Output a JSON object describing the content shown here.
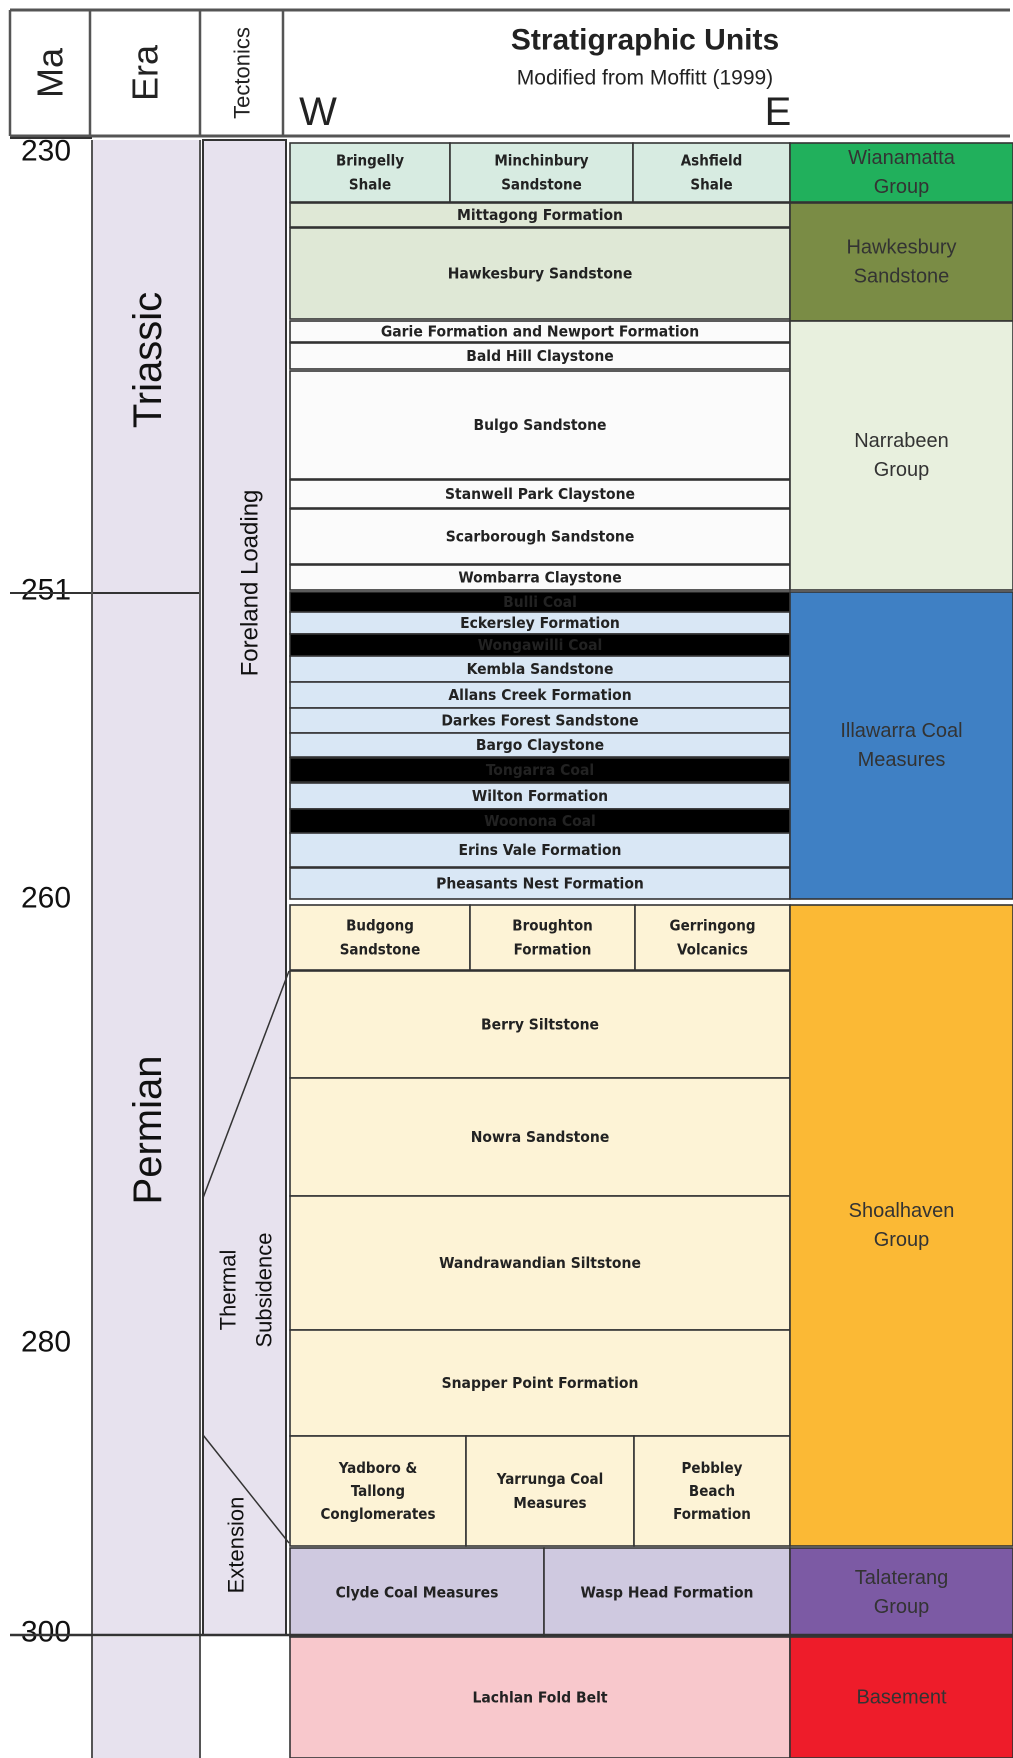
{
  "header": {
    "ma": "Ma",
    "era": "Era",
    "tectonics": "Tectonics",
    "title": "Stratigraphic Units",
    "subtitle": "Modified from Moffitt (1999)",
    "west": "W",
    "east": "E"
  },
  "ages": [
    "230",
    "251",
    "260",
    "280",
    "300"
  ],
  "eras": [
    "Triassic",
    "Permian"
  ],
  "tectonics": [
    "Foreland Loading",
    "Thermal",
    "Subsidence",
    "Extension"
  ],
  "units": [
    {
      "lines": [
        "Bringelly",
        "Shale"
      ],
      "fill": "#d7ebe1"
    },
    {
      "lines": [
        "Minchinbury",
        "Sandstone"
      ],
      "fill": "#d7ebe1"
    },
    {
      "lines": [
        "Ashfield",
        "Shale"
      ],
      "fill": "#d7ebe1"
    },
    {
      "lines": [
        "Mittagong Formation"
      ],
      "fill": "#dfe8d6"
    },
    {
      "lines": [
        "Hawkesbury Sandstone"
      ],
      "fill": "#dfe8d6"
    },
    {
      "lines": [
        "Garie Formation   and      Newport Formation"
      ],
      "fill": "#fbfbfb"
    },
    {
      "lines": [
        "Bald Hill Claystone"
      ],
      "fill": "#fbfbfb"
    },
    {
      "lines": [
        "Bulgo Sandstone"
      ],
      "fill": "#fbfbfb"
    },
    {
      "lines": [
        "Stanwell Park Claystone"
      ],
      "fill": "#fbfbfb"
    },
    {
      "lines": [
        "Scarborough Sandstone"
      ],
      "fill": "#fbfbfb"
    },
    {
      "lines": [
        "Wombarra Claystone"
      ],
      "fill": "#fbfbfb"
    },
    {
      "lines": [
        "Bulli Coal"
      ],
      "fill": "#000000"
    },
    {
      "lines": [
        "Eckersley Formation"
      ],
      "fill": "#d9e7f5"
    },
    {
      "lines": [
        "Wongawilli Coal"
      ],
      "fill": "#000000"
    },
    {
      "lines": [
        "Kembla Sandstone"
      ],
      "fill": "#d9e7f5"
    },
    {
      "lines": [
        "Allans Creek Formation"
      ],
      "fill": "#d9e7f5"
    },
    {
      "lines": [
        "Darkes Forest Sandstone"
      ],
      "fill": "#d9e7f5"
    },
    {
      "lines": [
        "Bargo Claystone"
      ],
      "fill": "#d9e7f5"
    },
    {
      "lines": [
        "Tongarra Coal"
      ],
      "fill": "#000000"
    },
    {
      "lines": [
        "Wilton Formation"
      ],
      "fill": "#d9e7f5"
    },
    {
      "lines": [
        "Woonona Coal"
      ],
      "fill": "#000000"
    },
    {
      "lines": [
        "Erins Vale Formation"
      ],
      "fill": "#d9e7f5"
    },
    {
      "lines": [
        "Pheasants Nest Formation"
      ],
      "fill": "#d9e7f5"
    },
    {
      "lines": [
        "Budgong",
        "Sandstone"
      ],
      "fill": "#fdf3d6"
    },
    {
      "lines": [
        "Broughton",
        "Formation"
      ],
      "fill": "#fdf3d6"
    },
    {
      "lines": [
        "Gerringong",
        "Volcanics"
      ],
      "fill": "#fdf3d6"
    },
    {
      "lines": [
        "Berry Siltstone"
      ],
      "fill": "#fdf3d6"
    },
    {
      "lines": [
        "Nowra Sandstone"
      ],
      "fill": "#fdf3d6"
    },
    {
      "lines": [
        "Wandrawandian Siltstone"
      ],
      "fill": "#fdf3d6"
    },
    {
      "lines": [
        "Snapper Point Formation"
      ],
      "fill": "#fdf3d6"
    },
    {
      "lines": [
        "Yadboro &",
        "Tallong",
        "Conglomerates"
      ],
      "fill": "#fdf3d6"
    },
    {
      "lines": [
        "Yarrunga Coal",
        "Measures"
      ],
      "fill": "#fdf3d6"
    },
    {
      "lines": [
        "Pebbley",
        "Beach",
        "Formation"
      ],
      "fill": "#fdf3d6"
    },
    {
      "lines": [
        "Clyde Coal Measures"
      ],
      "fill": "#cfc9e0"
    },
    {
      "lines": [
        "Wasp Head Formation"
      ],
      "fill": "#cfc9e0"
    },
    {
      "lines": [
        "Lachlan Fold Belt"
      ],
      "fill": "#f8c8cc"
    }
  ],
  "groups": [
    {
      "lines": [
        "Wianamatta",
        "Group"
      ],
      "fill": "#21b05c",
      "text_color": "#1a3a2a"
    },
    {
      "lines": [
        "Hawkesbury",
        "Sandstone"
      ],
      "fill": "#7a8c45",
      "text_color": "#e8ecd8"
    },
    {
      "lines": [
        "Narrabeen",
        "Group"
      ],
      "fill": "#e8f0de",
      "text_color": "#333333"
    },
    {
      "lines": [
        "Illawarra Coal",
        "Measures"
      ],
      "fill": "#3f80c4",
      "text_color": "#13273f"
    },
    {
      "lines": [
        "Shoalhaven",
        "Group"
      ],
      "fill": "#fbb935",
      "text_color": "#3a2a10"
    },
    {
      "lines": [
        "Talaterang",
        "Group"
      ],
      "fill": "#7c5aa4",
      "text_color": "#f0ebf7"
    },
    {
      "lines": [
        "Basement"
      ],
      "fill": "#ee1c2a",
      "text_color": "#6a0f14"
    }
  ],
  "colors": {
    "era_fill": "#e7e2ee",
    "grid": "#333333",
    "border": "#555555"
  }
}
